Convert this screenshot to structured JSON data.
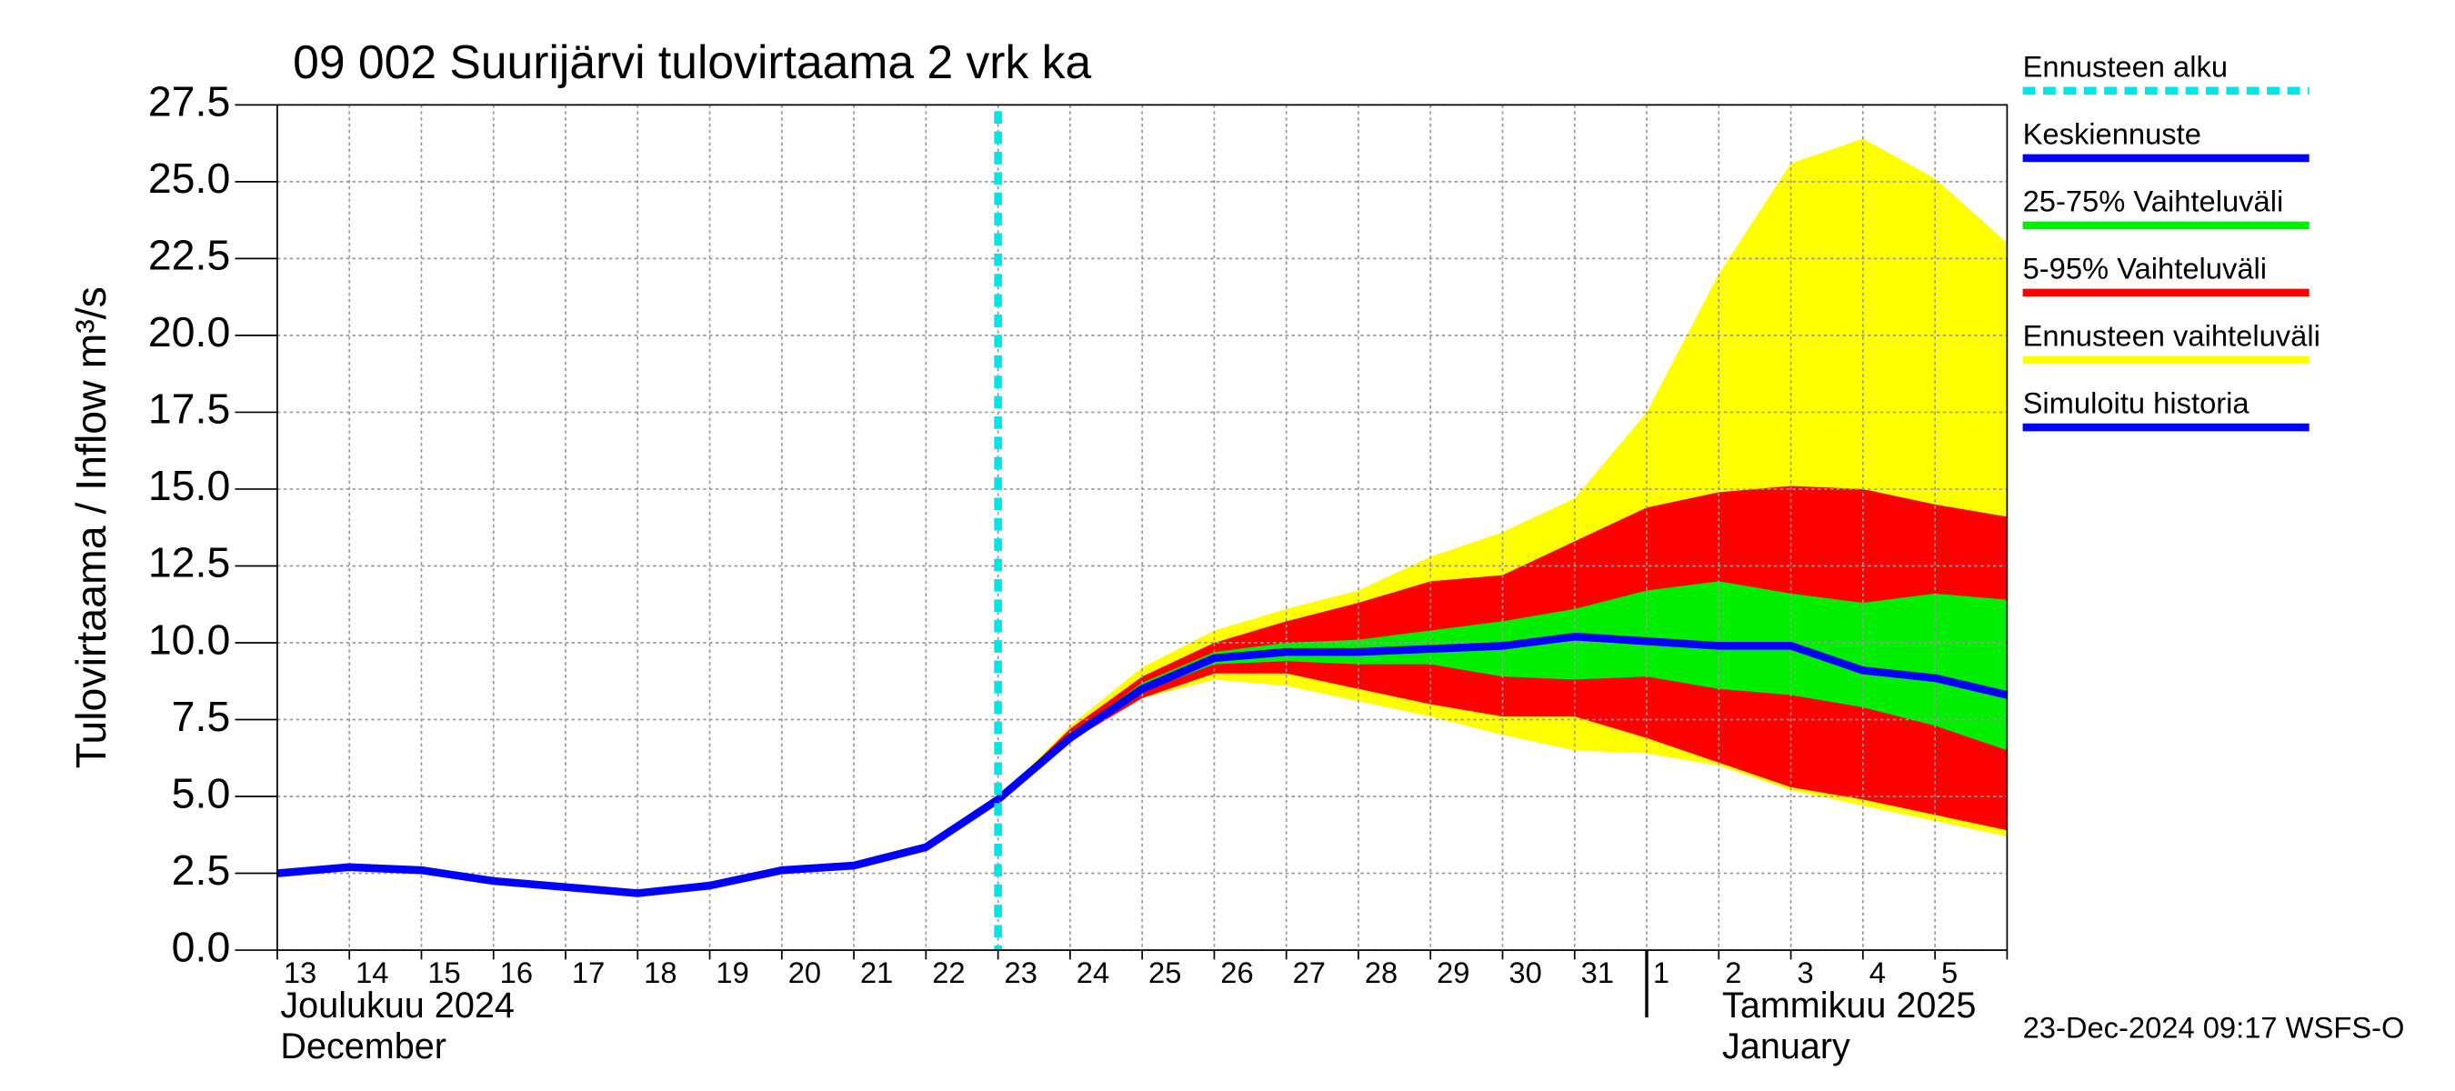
{
  "chart_data": {
    "type": "line",
    "title": "09 002 Suurijärvi tulovirtaama 2 vrk ka",
    "y_label": "Tulovirtaama / Inflow    m³/s",
    "categories": [
      "13",
      "14",
      "15",
      "16",
      "17",
      "18",
      "19",
      "20",
      "21",
      "22",
      "23",
      "24",
      "25",
      "26",
      "27",
      "28",
      "29",
      "30",
      "31",
      "1",
      "2",
      "3",
      "4",
      "5",
      null
    ],
    "months": [
      "Joulukuu  2024",
      "December",
      "Tammikuu  2025",
      "January"
    ],
    "ylim": [
      0,
      27.5
    ],
    "yticks": [
      {
        "value": 0,
        "label": "0.0"
      },
      2.5,
      {
        "value": 5,
        "label": "5.0"
      },
      7.5,
      {
        "value": 10,
        "label": "10.0"
      },
      12.5,
      {
        "value": 15,
        "label": "15.0"
      },
      17.5,
      {
        "value": 20,
        "label": "20.0"
      },
      22.5,
      {
        "value": 25,
        "label": "25.0"
      },
      27.5
    ],
    "grid": true,
    "forecast_start": {
      "name": "Ennusteen alku",
      "x": "23",
      "color": "#00e5e5"
    },
    "series": [
      {
        "name": "Keskiennuste",
        "color": "#0000ff",
        "values": [
          null,
          null,
          null,
          null,
          null,
          null,
          null,
          null,
          null,
          null,
          4.9,
          6.9,
          8.5,
          9.5,
          9.7,
          9.7,
          9.8,
          9.9,
          10.2,
          10.05,
          9.9,
          9.9,
          9.1,
          8.85,
          8.3
        ]
      },
      {
        "name": "25-75% Vaihteluväli",
        "color": "#00ee00",
        "low": [
          null,
          null,
          null,
          null,
          null,
          null,
          null,
          null,
          null,
          null,
          4.9,
          6.9,
          8.4,
          9.3,
          9.4,
          9.3,
          9.3,
          8.9,
          8.8,
          8.9,
          8.5,
          8.3,
          7.9,
          7.3,
          6.5
        ],
        "high": [
          null,
          null,
          null,
          null,
          null,
          null,
          null,
          null,
          null,
          null,
          4.9,
          7.0,
          8.7,
          9.7,
          10.0,
          10.1,
          10.4,
          10.7,
          11.1,
          11.7,
          12.0,
          11.6,
          11.3,
          11.6,
          11.4
        ]
      },
      {
        "name": "5-95% Vaihteluväli",
        "color": "#ff0000",
        "low": [
          null,
          null,
          null,
          null,
          null,
          null,
          null,
          null,
          null,
          null,
          4.9,
          6.8,
          8.2,
          9.0,
          9.0,
          8.5,
          8.0,
          7.6,
          7.6,
          6.9,
          6.1,
          5.3,
          4.9,
          4.4,
          3.9
        ],
        "high": [
          null,
          null,
          null,
          null,
          null,
          null,
          null,
          null,
          null,
          null,
          4.9,
          7.2,
          8.9,
          10.0,
          10.7,
          11.3,
          12.0,
          12.2,
          13.3,
          14.4,
          14.9,
          15.1,
          15.0,
          14.5,
          14.1
        ]
      },
      {
        "name": "Ennusteen vaihteluväli",
        "color": "#ffff00",
        "low": [
          null,
          null,
          null,
          null,
          null,
          null,
          null,
          null,
          null,
          null,
          4.9,
          6.8,
          8.2,
          8.8,
          8.6,
          8.1,
          7.6,
          7.0,
          6.5,
          6.4,
          6.0,
          5.2,
          4.7,
          4.2,
          3.7
        ],
        "high": [
          null,
          null,
          null,
          null,
          null,
          null,
          null,
          null,
          null,
          null,
          4.9,
          7.3,
          9.2,
          10.4,
          11.1,
          11.7,
          12.8,
          13.6,
          14.7,
          17.5,
          22.0,
          25.6,
          26.4,
          25.1,
          23.0
        ]
      },
      {
        "name": "Simuloitu historia",
        "color": "#0000ff",
        "values": [
          2.5,
          2.7,
          2.6,
          2.25,
          2.05,
          1.85,
          2.1,
          2.6,
          2.75,
          3.35,
          4.9,
          null,
          null,
          null,
          null,
          null,
          null,
          null,
          null,
          null,
          null,
          null,
          null,
          null,
          null
        ]
      }
    ],
    "footer": "23-Dec-2024 09:17 WSFS-O"
  }
}
